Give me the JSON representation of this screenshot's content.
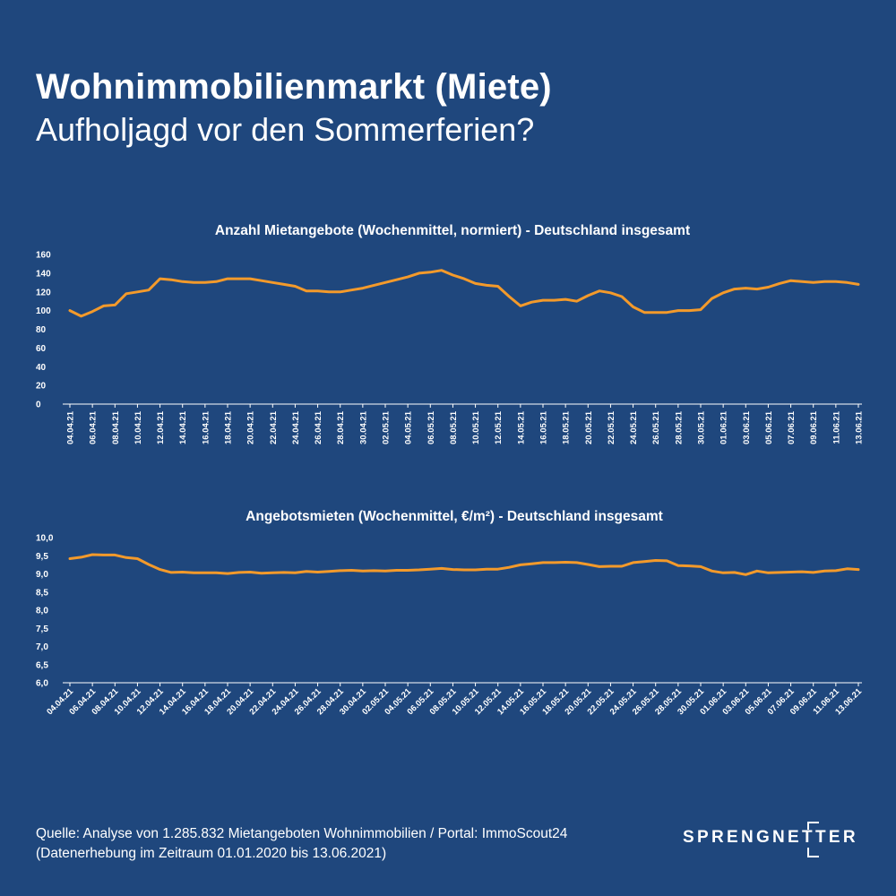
{
  "header": {
    "title": "Wohnimmobilienmarkt (Miete)",
    "subtitle": "Aufholjagd vor den Sommerferien?"
  },
  "footer": {
    "source_line1": "Quelle: Analyse von 1.285.832 Mietangeboten Wohnimmobilien / Portal: ImmoScout24",
    "source_line2": "(Datenerhebung im Zeitraum 01.01.2020 bis  13.06.2021)",
    "logo_text": "SPRENGNETTER"
  },
  "colors": {
    "background": "#1f477d",
    "series": "#f39a2b",
    "text": "#ffffff"
  },
  "chart_data": [
    {
      "type": "line",
      "title": "Anzahl Mietangebote (Wochenmittel, normiert) - Deutschland insgesamt",
      "ylim": [
        0,
        160
      ],
      "yticks": [
        "0",
        "20",
        "40",
        "60",
        "80",
        "100",
        "120",
        "140",
        "160"
      ],
      "x": [
        "04.04.21",
        "05.04.21",
        "06.04.21",
        "07.04.21",
        "08.04.21",
        "09.04.21",
        "10.04.21",
        "11.04.21",
        "12.04.21",
        "13.04.21",
        "14.04.21",
        "15.04.21",
        "16.04.21",
        "17.04.21",
        "18.04.21",
        "19.04.21",
        "20.04.21",
        "21.04.21",
        "22.04.21",
        "23.04.21",
        "24.04.21",
        "25.04.21",
        "26.04.21",
        "27.04.21",
        "28.04.21",
        "29.04.21",
        "30.04.21",
        "01.05.21",
        "02.05.21",
        "03.05.21",
        "04.05.21",
        "05.05.21",
        "06.05.21",
        "07.05.21",
        "08.05.21",
        "09.05.21",
        "10.05.21",
        "11.05.21",
        "12.05.21",
        "13.05.21",
        "14.05.21",
        "15.05.21",
        "16.05.21",
        "17.05.21",
        "18.05.21",
        "19.05.21",
        "20.05.21",
        "21.05.21",
        "22.05.21",
        "23.05.21",
        "24.05.21",
        "25.05.21",
        "26.05.21",
        "27.05.21",
        "28.05.21",
        "29.05.21",
        "30.05.21",
        "31.05.21",
        "01.06.21",
        "02.06.21",
        "03.06.21",
        "04.06.21",
        "05.06.21",
        "06.06.21",
        "07.06.21",
        "08.06.21",
        "09.06.21",
        "10.06.21",
        "11.06.21",
        "12.06.21",
        "13.06.21"
      ],
      "xtick_labels": [
        "04.04.21",
        "06.04.21",
        "08.04.21",
        "10.04.21",
        "12.04.21",
        "14.04.21",
        "16.04.21",
        "18.04.21",
        "20.04.21",
        "22.04.21",
        "24.04.21",
        "26.04.21",
        "28.04.21",
        "30.04.21",
        "02.05.21",
        "04.05.21",
        "06.05.21",
        "08.05.21",
        "10.05.21",
        "12.05.21",
        "14.05.21",
        "16.05.21",
        "18.05.21",
        "20.05.21",
        "22.05.21",
        "24.05.21",
        "26.05.21",
        "28.05.21",
        "30.05.21",
        "01.06.21",
        "03.06.21",
        "05.06.21",
        "07.06.21",
        "09.06.21",
        "11.06.21",
        "13.06.21"
      ],
      "values": [
        100,
        94,
        99,
        105,
        106,
        118,
        120,
        122,
        134,
        133,
        131,
        130,
        130,
        131,
        134,
        134,
        134,
        132,
        130,
        128,
        126,
        121,
        121,
        120,
        120,
        122,
        124,
        127,
        130,
        133,
        136,
        140,
        141,
        143,
        138,
        134,
        129,
        127,
        126,
        115,
        105,
        109,
        111,
        111,
        112,
        110,
        116,
        121,
        119,
        115,
        104,
        98,
        98,
        98,
        100,
        100,
        101,
        113,
        119,
        123,
        124,
        123,
        125,
        129,
        132,
        131,
        130,
        131,
        131,
        130,
        128
      ]
    },
    {
      "type": "line",
      "title": "Angebotsmieten (Wochenmittel, €/m²) - Deutschland insgesamt",
      "ylim": [
        6.0,
        10.0
      ],
      "yticks": [
        "6,0",
        "6,5",
        "7,0",
        "7,5",
        "8,0",
        "8,5",
        "9,0",
        "9,5",
        "10,0"
      ],
      "x": [
        "04.04.21",
        "05.04.21",
        "06.04.21",
        "07.04.21",
        "08.04.21",
        "09.04.21",
        "10.04.21",
        "11.04.21",
        "12.04.21",
        "13.04.21",
        "14.04.21",
        "15.04.21",
        "16.04.21",
        "17.04.21",
        "18.04.21",
        "19.04.21",
        "20.04.21",
        "21.04.21",
        "22.04.21",
        "23.04.21",
        "24.04.21",
        "25.04.21",
        "26.04.21",
        "27.04.21",
        "28.04.21",
        "29.04.21",
        "30.04.21",
        "01.05.21",
        "02.05.21",
        "03.05.21",
        "04.05.21",
        "05.05.21",
        "06.05.21",
        "07.05.21",
        "08.05.21",
        "09.05.21",
        "10.05.21",
        "11.05.21",
        "12.05.21",
        "13.05.21",
        "14.05.21",
        "15.05.21",
        "16.05.21",
        "17.05.21",
        "18.05.21",
        "19.05.21",
        "20.05.21",
        "21.05.21",
        "22.05.21",
        "23.05.21",
        "24.05.21",
        "25.05.21",
        "26.05.21",
        "27.05.21",
        "28.05.21",
        "29.05.21",
        "30.05.21",
        "31.05.21",
        "01.06.21",
        "02.06.21",
        "03.06.21",
        "04.06.21",
        "05.06.21",
        "06.06.21",
        "07.06.21",
        "08.06.21",
        "09.06.21",
        "10.06.21",
        "11.06.21",
        "12.06.21",
        "13.06.21"
      ],
      "xtick_labels": [
        "04.04.21",
        "06.04.21",
        "08.04.21",
        "10.04.21",
        "12.04.21",
        "14.04.21",
        "16.04.21",
        "18.04.21",
        "20.04.21",
        "22.04.21",
        "24.04.21",
        "26.04.21",
        "28.04.21",
        "30.04.21",
        "02.05.21",
        "04.05.21",
        "06.05.21",
        "08.05.21",
        "10.05.21",
        "12.05.21",
        "14.05.21",
        "16.05.21",
        "18.05.21",
        "20.05.21",
        "22.05.21",
        "24.05.21",
        "26.05.21",
        "28.05.21",
        "30.05.21",
        "01.06.21",
        "03.06.21",
        "05.06.21",
        "07.06.21",
        "09.06.21",
        "11.06.21",
        "13.06.21"
      ],
      "values": [
        9.42,
        9.46,
        9.53,
        9.52,
        9.52,
        9.45,
        9.42,
        9.26,
        9.12,
        9.04,
        9.05,
        9.03,
        9.03,
        9.03,
        9.01,
        9.04,
        9.05,
        9.02,
        9.03,
        9.04,
        9.03,
        9.07,
        9.05,
        9.07,
        9.09,
        9.1,
        9.08,
        9.09,
        9.08,
        9.1,
        9.1,
        9.11,
        9.13,
        9.15,
        9.12,
        9.11,
        9.11,
        9.13,
        9.13,
        9.18,
        9.25,
        9.28,
        9.31,
        9.31,
        9.32,
        9.31,
        9.26,
        9.2,
        9.21,
        9.21,
        9.31,
        9.34,
        9.37,
        9.36,
        9.23,
        9.22,
        9.2,
        9.08,
        9.03,
        9.04,
        8.98,
        9.08,
        9.03,
        9.04,
        9.05,
        9.06,
        9.04,
        9.08,
        9.09,
        9.14,
        9.12
      ]
    }
  ]
}
